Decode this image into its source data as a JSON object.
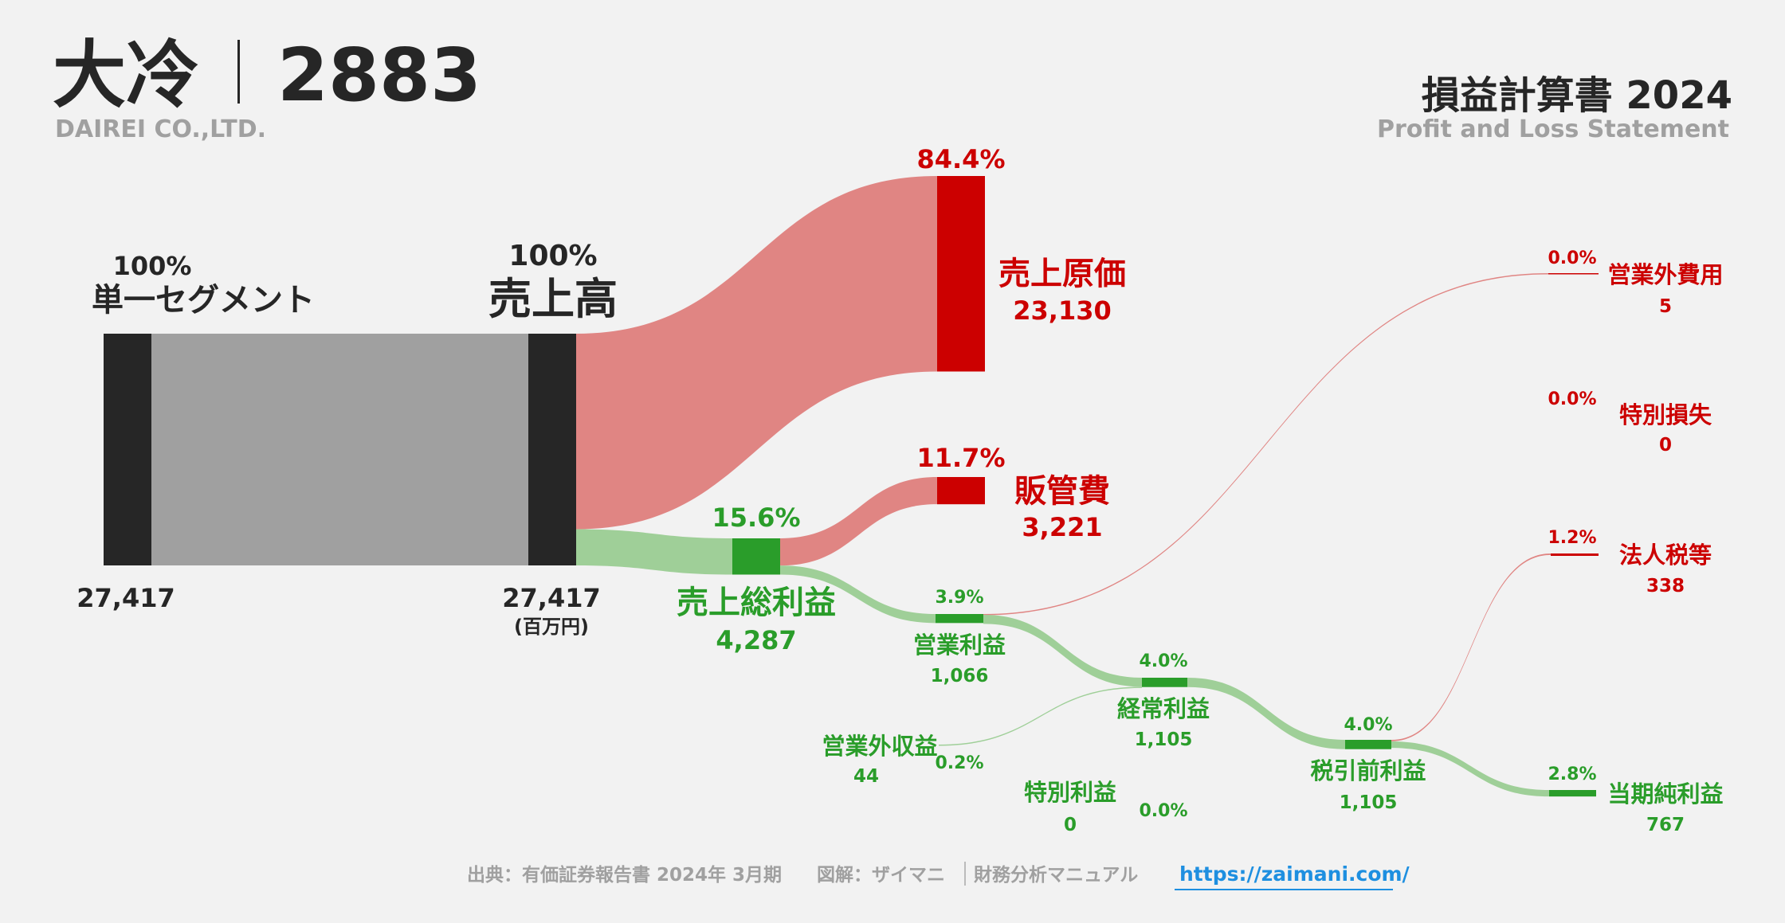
{
  "header": {
    "company": "大冷",
    "ticker": "2883",
    "company_en": "DAIREI CO.,LTD.",
    "statement_title": "損益計算書 2024",
    "statement_subtitle": "Profit and Loss Statement"
  },
  "chart_data": {
    "type": "sankey",
    "unit": "(百万円)",
    "colors": {
      "node": "#262626",
      "segment_flow": "#a0a0a0",
      "cost": "#cc0000",
      "cost_flow": "#e08583",
      "profit": "#2a9d2a",
      "profit_flow": "#9fcf98"
    },
    "nodes": {
      "segment": {
        "label": "単一セグメント",
        "value": "27,417",
        "pct": "100%"
      },
      "revenue": {
        "label": "売上高",
        "value": "27,417",
        "pct": "100%"
      },
      "cogs": {
        "label": "売上原価",
        "value": "23,130",
        "pct": "84.4%"
      },
      "sga": {
        "label": "販管費",
        "value": "3,221",
        "pct": "11.7%"
      },
      "gross": {
        "label": "売上総利益",
        "value": "4,287",
        "pct": "15.6%"
      },
      "operating": {
        "label": "営業利益",
        "value": "1,066",
        "pct": "3.9%"
      },
      "non_op_exp": {
        "label": "営業外費用",
        "value": "5",
        "pct": "0.0%"
      },
      "non_op_inc": {
        "label": "営業外収益",
        "value": "44",
        "pct": "0.2%"
      },
      "ordinary": {
        "label": "経常利益",
        "value": "1,105",
        "pct": "4.0%"
      },
      "extra_gain": {
        "label": "特別利益",
        "value": "0",
        "pct": "0.0%"
      },
      "extra_loss": {
        "label": "特別損失",
        "value": "0",
        "pct": "0.0%"
      },
      "pretax": {
        "label": "税引前利益",
        "value": "1,105",
        "pct": "4.0%"
      },
      "tax": {
        "label": "法人税等",
        "value": "338",
        "pct": "1.2%"
      },
      "net": {
        "label": "当期純利益",
        "value": "767",
        "pct": "2.8%"
      }
    },
    "values": {
      "segment": 27417,
      "revenue": 27417,
      "cogs": 23130,
      "sga": 3221,
      "gross": 4287,
      "operating": 1066,
      "non_op_exp": 5,
      "non_op_inc": 44,
      "ordinary": 1105,
      "extra_gain": 0,
      "extra_loss": 0,
      "pretax": 1105,
      "tax": 338,
      "net": 767
    }
  },
  "footer": {
    "source": "出典：有価証券報告書 2024年 3月期",
    "credit": "図解：ザイマニ",
    "credit2": "財務分析マニュアル",
    "link": "https://zaimani.com/"
  }
}
